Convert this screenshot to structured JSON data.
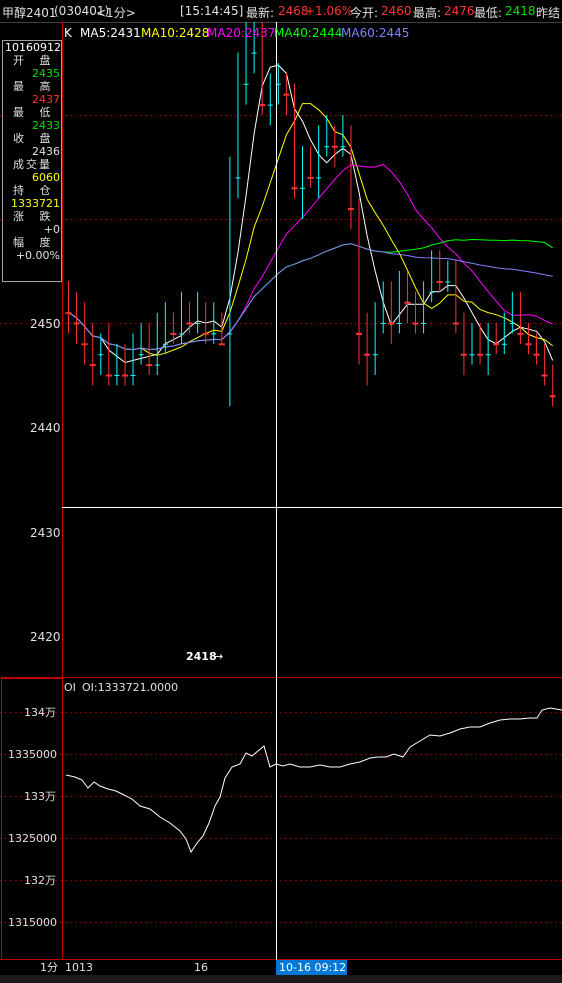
{
  "header": {
    "symbol": "甲醇2401",
    "code": "(030401)",
    "period": "<1分>",
    "time": "[15:14:45]",
    "latest_label": "最新:",
    "latest_value": "2468",
    "change_pct": "+1.06%",
    "open_label": "今开:",
    "open_value": "2460",
    "high_label": "最高:",
    "high_value": "2476",
    "low_label": "最低:",
    "low_value": "2418",
    "prev_label": "昨结"
  },
  "ma_legend": {
    "k": "K",
    "ma5": "MA5:2431",
    "ma10": "MA10:2428",
    "ma20": "MA20:2437",
    "ma40": "MA40:2444",
    "ma60": "MA60:2445"
  },
  "info": {
    "date": "10160912",
    "open_label": "开 盘",
    "open": "2435",
    "high_label": "最 高",
    "high": "2437",
    "low_label": "最 低",
    "low": "2433",
    "close_label": "收 盘",
    "close": "2436",
    "volume_label": "成交量",
    "volume": "6060",
    "oi_label": "持 仓",
    "oi": "1333721",
    "change_label": "涨 跌",
    "change": "+0",
    "range_label": "幅 度",
    "range": "+0.00%"
  },
  "price_axis": [
    "2450",
    "2440",
    "2430",
    "2420"
  ],
  "low_marker": "2418",
  "oi_panel": {
    "title": "OI",
    "value_label": "OI:1333721.0000",
    "axis": [
      "134万",
      "1335000",
      "133万",
      "1325000",
      "132万",
      "1315000"
    ]
  },
  "time_axis": {
    "period": "1分",
    "start": "1013",
    "mid": "16",
    "cursor": "10-16 09:12"
  },
  "colors": {
    "up": "#ff3232",
    "down": "#00ffff",
    "ma5": "#ffffff",
    "ma10": "#ffff00",
    "ma20": "#ff00ff",
    "ma40": "#00ff00",
    "ma60": "#8080ff",
    "grid": "#800000",
    "cursor": "#0078d7"
  }
}
